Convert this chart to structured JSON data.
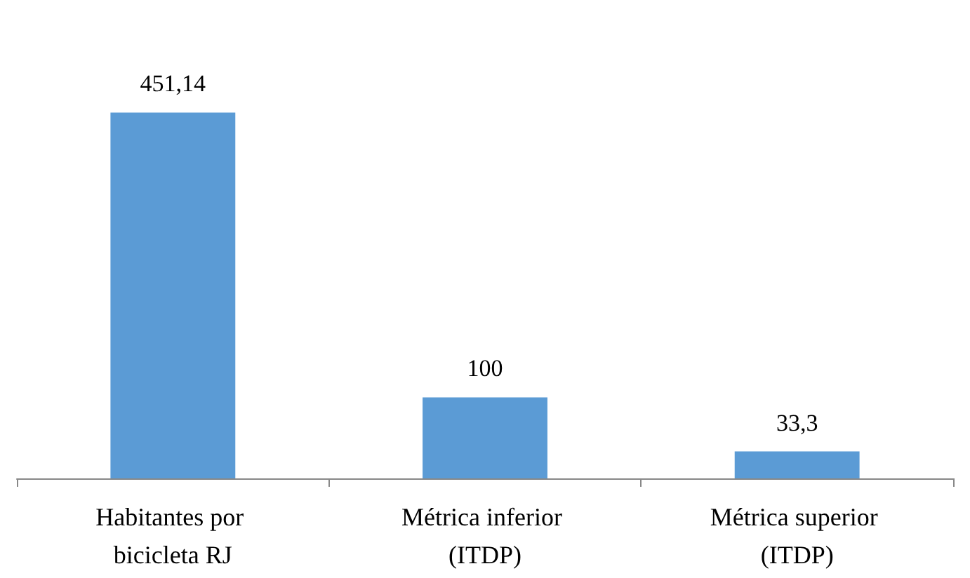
{
  "chart_data": {
    "type": "bar",
    "categories": [
      "Habitantes por bicicleta RJ",
      "Métrica inferior (ITDP)",
      "Métrica superior (ITDP)"
    ],
    "values": [
      451.14,
      100,
      33.3
    ],
    "color": "#5b9bd5",
    "value_labels": [
      "451,14",
      "100",
      "33,3"
    ]
  }
}
